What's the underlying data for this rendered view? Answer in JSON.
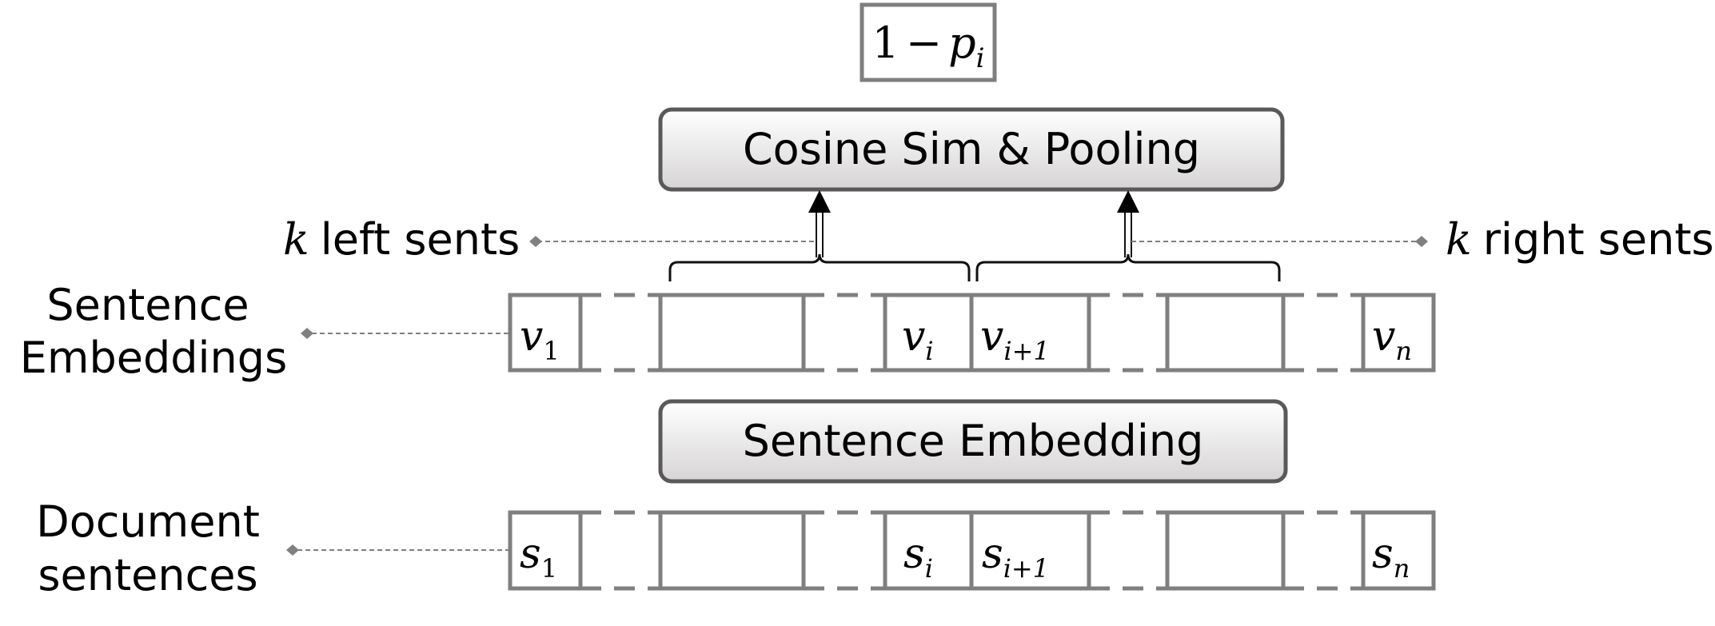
{
  "output_box": {
    "text_num": "1",
    "text_op": "−",
    "text_var": "p",
    "text_sub": "i"
  },
  "cosine_box": {
    "label": "Cosine Sim & Pooling"
  },
  "embedding_box": {
    "label": "Sentence Embedding"
  },
  "left_context": {
    "var": "k",
    "label": "left sents"
  },
  "right_context": {
    "var": "k",
    "label": "right sents"
  },
  "row_labels": {
    "embeddings_line1": "Sentence",
    "embeddings_line2": "Embeddings",
    "sentences_line1": "Document",
    "sentences_line2": "sentences"
  },
  "embeddings": {
    "first": {
      "var": "v",
      "sub": "1"
    },
    "current": {
      "var": "v",
      "sub": "i"
    },
    "next": {
      "var": "v",
      "sub": "i+1"
    },
    "last": {
      "var": "v",
      "sub": "n"
    }
  },
  "sentences": {
    "first": {
      "var": "s",
      "sub": "1"
    },
    "current": {
      "var": "s",
      "sub": "i"
    },
    "next": {
      "var": "s",
      "sub": "i+1"
    },
    "last": {
      "var": "s",
      "sub": "n"
    }
  },
  "colors": {
    "box_stroke": "#7f7f7f",
    "panel_stroke": "#595959",
    "panel_fill_top": "#ffffff",
    "panel_fill_bottom": "#d9d7d7",
    "leader": "#808080"
  }
}
